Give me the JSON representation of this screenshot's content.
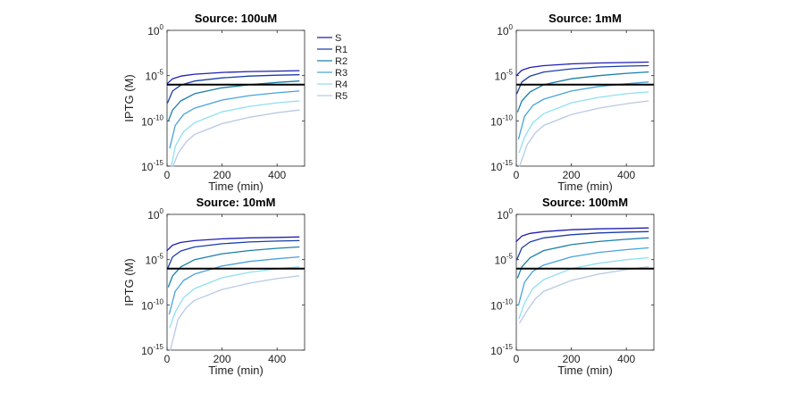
{
  "chart_data": [
    {
      "type": "line",
      "title": "Source: 100uM",
      "xlabel": "Time (min)",
      "ylabel": "IPTG (M)",
      "xlim": [
        0,
        500
      ],
      "ylim_exponent": [
        -15,
        0
      ],
      "yscale": "log",
      "xticks": [
        "0",
        "200",
        "400"
      ],
      "ytick_base": "10",
      "ytick_exponents": [
        "0",
        "-5",
        "-10",
        "-15"
      ],
      "threshold_log10": -6,
      "series": [
        {
          "name": "S",
          "color": "#1f1fb4",
          "start_t": 0,
          "x": [
            0,
            20,
            50,
            100,
            200,
            300,
            400,
            480
          ],
          "log10_y": [
            -5.9,
            -5.35,
            -5.05,
            -4.85,
            -4.65,
            -4.55,
            -4.5,
            -4.45
          ]
        },
        {
          "name": "R1",
          "color": "#1a3ea8",
          "start_t": 2,
          "x": [
            2,
            20,
            50,
            100,
            200,
            300,
            400,
            480
          ],
          "log10_y": [
            -8.0,
            -6.7,
            -6.05,
            -5.6,
            -5.25,
            -5.05,
            -4.95,
            -4.9
          ]
        },
        {
          "name": "R2",
          "color": "#1a7fa8",
          "start_t": 5,
          "x": [
            5,
            20,
            50,
            100,
            200,
            300,
            400,
            480
          ],
          "log10_y": [
            -10.0,
            -8.8,
            -7.8,
            -7.0,
            -6.35,
            -6.0,
            -5.75,
            -5.6
          ]
        },
        {
          "name": "R3",
          "color": "#49a3d8",
          "start_t": 10,
          "x": [
            10,
            30,
            60,
            100,
            200,
            300,
            400,
            480
          ],
          "log10_y": [
            -13.0,
            -10.5,
            -9.3,
            -8.6,
            -7.7,
            -7.2,
            -6.9,
            -6.7
          ]
        },
        {
          "name": "R4",
          "color": "#8fe0ef",
          "start_t": 16,
          "x": [
            16,
            30,
            60,
            100,
            200,
            300,
            400,
            480
          ],
          "log10_y": [
            -15.0,
            -12.8,
            -11.2,
            -10.2,
            -9.0,
            -8.4,
            -8.0,
            -7.8
          ]
        },
        {
          "name": "R5",
          "color": "#b7c9e6",
          "start_t": 22,
          "x": [
            22,
            40,
            70,
            100,
            200,
            300,
            400,
            480
          ],
          "log10_y": [
            -15.0,
            -13.6,
            -12.3,
            -11.5,
            -10.3,
            -9.6,
            -9.1,
            -8.8
          ]
        }
      ]
    },
    {
      "type": "line",
      "title": "Source: 1mM",
      "xlabel": "Time (min)",
      "ylabel": "",
      "xlim": [
        0,
        500
      ],
      "ylim_exponent": [
        -15,
        0
      ],
      "yscale": "log",
      "xticks": [
        "0",
        "200",
        "400"
      ],
      "ytick_base": "10",
      "ytick_exponents": [
        "0",
        "-5",
        "-10",
        "-15"
      ],
      "threshold_log10": -6,
      "series": [
        {
          "name": "S",
          "color": "#1f1fb4",
          "x": [
            0,
            20,
            50,
            100,
            200,
            300,
            400,
            480
          ],
          "log10_y": [
            -5.0,
            -4.4,
            -4.1,
            -3.9,
            -3.7,
            -3.6,
            -3.55,
            -3.5
          ]
        },
        {
          "name": "R1",
          "color": "#1a3ea8",
          "x": [
            2,
            20,
            50,
            100,
            200,
            300,
            400,
            480
          ],
          "log10_y": [
            -7.0,
            -5.7,
            -5.05,
            -4.6,
            -4.25,
            -4.05,
            -3.95,
            -3.9
          ]
        },
        {
          "name": "R2",
          "color": "#1a7fa8",
          "x": [
            5,
            20,
            50,
            100,
            200,
            300,
            400,
            480
          ],
          "log10_y": [
            -9.0,
            -7.8,
            -6.8,
            -6.0,
            -5.35,
            -5.0,
            -4.75,
            -4.6
          ]
        },
        {
          "name": "R3",
          "color": "#49a3d8",
          "x": [
            8,
            30,
            60,
            100,
            200,
            300,
            400,
            480
          ],
          "log10_y": [
            -12.0,
            -9.5,
            -8.3,
            -7.6,
            -6.7,
            -6.2,
            -5.9,
            -5.7
          ]
        },
        {
          "name": "R4",
          "color": "#8fe0ef",
          "x": [
            10,
            30,
            60,
            100,
            200,
            300,
            400,
            480
          ],
          "log10_y": [
            -13.5,
            -11.8,
            -10.2,
            -9.2,
            -8.0,
            -7.4,
            -7.0,
            -6.8
          ]
        },
        {
          "name": "R5",
          "color": "#b7c9e6",
          "x": [
            12,
            40,
            70,
            100,
            200,
            300,
            400,
            480
          ],
          "log10_y": [
            -15.0,
            -12.6,
            -11.3,
            -10.5,
            -9.3,
            -8.6,
            -8.1,
            -7.8
          ]
        }
      ]
    },
    {
      "type": "line",
      "title": "Source: 10mM",
      "xlabel": "Time (min)",
      "ylabel": "IPTG (M)",
      "xlim": [
        0,
        500
      ],
      "ylim_exponent": [
        -15,
        0
      ],
      "yscale": "log",
      "xticks": [
        "0",
        "200",
        "400"
      ],
      "ytick_base": "10",
      "ytick_exponents": [
        "0",
        "-5",
        "-10",
        "-15"
      ],
      "threshold_log10": -6,
      "series": [
        {
          "name": "S",
          "color": "#1f1fb4",
          "x": [
            0,
            20,
            50,
            100,
            200,
            300,
            400,
            480
          ],
          "log10_y": [
            -4.0,
            -3.4,
            -3.1,
            -2.9,
            -2.7,
            -2.6,
            -2.55,
            -2.5
          ]
        },
        {
          "name": "R1",
          "color": "#1a3ea8",
          "x": [
            2,
            20,
            50,
            100,
            200,
            300,
            400,
            480
          ],
          "log10_y": [
            -6.0,
            -4.7,
            -4.05,
            -3.6,
            -3.25,
            -3.05,
            -2.95,
            -2.9
          ]
        },
        {
          "name": "R2",
          "color": "#1a7fa8",
          "x": [
            5,
            20,
            50,
            100,
            200,
            300,
            400,
            480
          ],
          "log10_y": [
            -8.0,
            -6.8,
            -5.8,
            -5.0,
            -4.35,
            -4.0,
            -3.75,
            -3.6
          ]
        },
        {
          "name": "R3",
          "color": "#49a3d8",
          "x": [
            8,
            30,
            60,
            100,
            200,
            300,
            400,
            480
          ],
          "log10_y": [
            -11.0,
            -8.5,
            -7.3,
            -6.6,
            -5.7,
            -5.2,
            -4.9,
            -4.7
          ]
        },
        {
          "name": "R4",
          "color": "#8fe0ef",
          "x": [
            10,
            30,
            60,
            100,
            200,
            300,
            400,
            480
          ],
          "log10_y": [
            -12.5,
            -10.8,
            -9.2,
            -8.2,
            -7.0,
            -6.4,
            -6.0,
            -5.8
          ]
        },
        {
          "name": "R5",
          "color": "#b7c9e6",
          "x": [
            12,
            40,
            70,
            100,
            200,
            300,
            400,
            480
          ],
          "log10_y": [
            -15.0,
            -11.6,
            -10.3,
            -9.5,
            -8.3,
            -7.6,
            -7.1,
            -6.8
          ]
        }
      ]
    },
    {
      "type": "line",
      "title": "Source: 100mM",
      "xlabel": "Time (min)",
      "ylabel": "",
      "xlim": [
        0,
        500
      ],
      "ylim_exponent": [
        -15,
        0
      ],
      "yscale": "log",
      "xticks": [
        "0",
        "200",
        "400"
      ],
      "ytick_base": "10",
      "ytick_exponents": [
        "0",
        "-5",
        "-10",
        "-15"
      ],
      "threshold_log10": -6,
      "series": [
        {
          "name": "S",
          "color": "#1f1fb4",
          "x": [
            0,
            20,
            50,
            100,
            200,
            300,
            400,
            480
          ],
          "log10_y": [
            -3.0,
            -2.4,
            -2.1,
            -1.9,
            -1.7,
            -1.6,
            -1.55,
            -1.5
          ]
        },
        {
          "name": "R1",
          "color": "#1a3ea8",
          "x": [
            2,
            20,
            50,
            100,
            200,
            300,
            400,
            480
          ],
          "log10_y": [
            -5.0,
            -3.7,
            -3.05,
            -2.6,
            -2.25,
            -2.05,
            -1.95,
            -1.9
          ]
        },
        {
          "name": "R2",
          "color": "#1a7fa8",
          "x": [
            5,
            20,
            50,
            100,
            200,
            300,
            400,
            480
          ],
          "log10_y": [
            -7.0,
            -5.8,
            -4.8,
            -4.0,
            -3.35,
            -3.0,
            -2.75,
            -2.6
          ]
        },
        {
          "name": "R3",
          "color": "#49a3d8",
          "x": [
            8,
            30,
            60,
            100,
            200,
            300,
            400,
            480
          ],
          "log10_y": [
            -10.0,
            -7.5,
            -6.3,
            -5.6,
            -4.7,
            -4.2,
            -3.9,
            -3.7
          ]
        },
        {
          "name": "R4",
          "color": "#8fe0ef",
          "x": [
            10,
            30,
            60,
            100,
            200,
            300,
            400,
            480
          ],
          "log10_y": [
            -11.5,
            -9.8,
            -8.2,
            -7.2,
            -6.0,
            -5.4,
            -5.0,
            -4.8
          ]
        },
        {
          "name": "R5",
          "color": "#b7c9e6",
          "x": [
            12,
            40,
            70,
            100,
            200,
            300,
            400,
            480
          ],
          "log10_y": [
            -12.0,
            -10.6,
            -9.3,
            -8.5,
            -7.3,
            -6.6,
            -6.1,
            -5.8
          ]
        }
      ]
    }
  ],
  "legend": {
    "placement": "right of top-left panel",
    "entries": [
      "S",
      "R1",
      "R2",
      "R3",
      "R4",
      "R5"
    ]
  }
}
